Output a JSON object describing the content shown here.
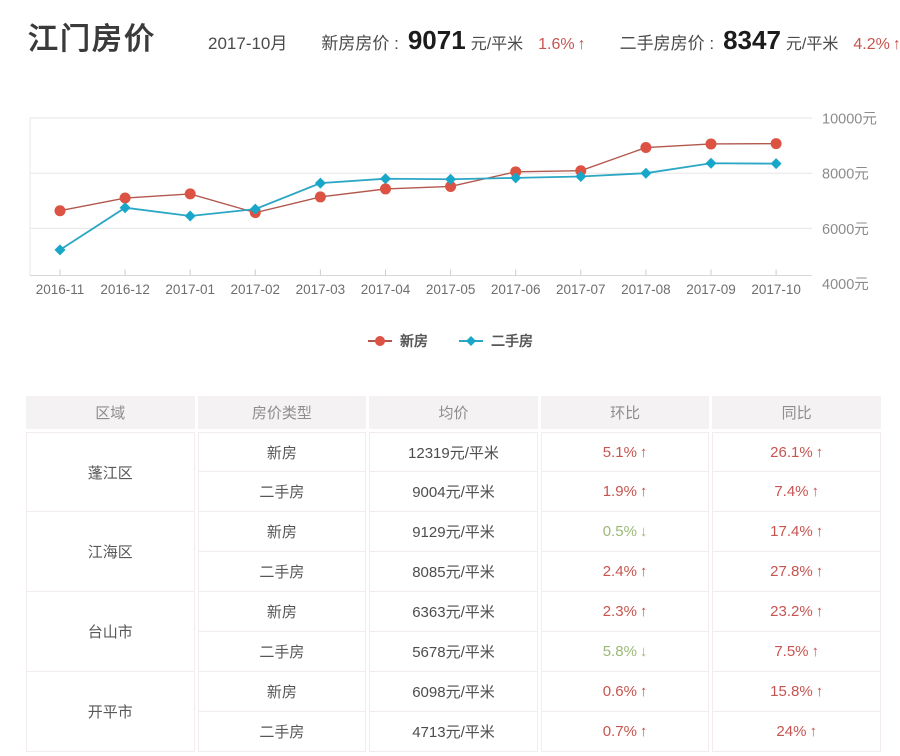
{
  "header": {
    "title": "江门房价",
    "date": "2017-10月",
    "new_label": "新房房价 :",
    "new_price": "9071",
    "new_unit": "元/平米",
    "new_change": "1.6%",
    "new_trend": "up",
    "second_label": "二手房房价 :",
    "second_price": "8347",
    "second_unit": "元/平米",
    "second_change": "4.2%",
    "second_trend": "up",
    "grid_icon": "grid-icon"
  },
  "colors": {
    "up_red": "#c75450",
    "down_green": "#9cb878",
    "new_house_series": "#dc5243",
    "second_hand_series": "#18a7c9"
  },
  "chart_data": {
    "type": "line",
    "x": [
      "2016-11",
      "2016-12",
      "2017-01",
      "2017-02",
      "2017-03",
      "2017-04",
      "2017-05",
      "2017-06",
      "2017-07",
      "2017-08",
      "2017-09",
      "2017-10"
    ],
    "series": [
      {
        "name": "新房",
        "marker": "circle",
        "color": "#dc5243",
        "line_color": "#b2584d",
        "values": [
          6640,
          7100,
          7250,
          6570,
          7140,
          7430,
          7520,
          8050,
          8090,
          8930,
          9060,
          9071
        ]
      },
      {
        "name": "二手房",
        "marker": "diamond",
        "color": "#18a7c9",
        "line_color": "#2ba6c4",
        "values": [
          5220,
          6750,
          6450,
          6700,
          7640,
          7800,
          7780,
          7830,
          7880,
          8000,
          8360,
          8347
        ]
      }
    ],
    "ylim": [
      4000,
      10000
    ],
    "y_tick_labels": [
      "10000元",
      "8000元",
      "6000元",
      "4000元"
    ],
    "y_unit": "元",
    "grid": true,
    "legend_position": "bottom"
  },
  "table": {
    "headers": [
      "区域",
      "房价类型",
      "均价",
      "环比",
      "同比"
    ],
    "regions": [
      {
        "name": "蓬江区",
        "rows": [
          {
            "type": "新房",
            "price": "12319元/平米",
            "mom": "5.1%",
            "mom_dir": "up",
            "yoy": "26.1%",
            "yoy_dir": "up"
          },
          {
            "type": "二手房",
            "price": "9004元/平米",
            "mom": "1.9%",
            "mom_dir": "up",
            "yoy": "7.4%",
            "yoy_dir": "up"
          }
        ]
      },
      {
        "name": "江海区",
        "rows": [
          {
            "type": "新房",
            "price": "9129元/平米",
            "mom": "0.5%",
            "mom_dir": "down",
            "yoy": "17.4%",
            "yoy_dir": "up"
          },
          {
            "type": "二手房",
            "price": "8085元/平米",
            "mom": "2.4%",
            "mom_dir": "up",
            "yoy": "27.8%",
            "yoy_dir": "up"
          }
        ]
      },
      {
        "name": "台山市",
        "rows": [
          {
            "type": "新房",
            "price": "6363元/平米",
            "mom": "2.3%",
            "mom_dir": "up",
            "yoy": "23.2%",
            "yoy_dir": "up"
          },
          {
            "type": "二手房",
            "price": "5678元/平米",
            "mom": "5.8%",
            "mom_dir": "down",
            "yoy": "7.5%",
            "yoy_dir": "up"
          }
        ]
      },
      {
        "name": "开平市",
        "rows": [
          {
            "type": "新房",
            "price": "6098元/平米",
            "mom": "0.6%",
            "mom_dir": "up",
            "yoy": "15.8%",
            "yoy_dir": "up"
          },
          {
            "type": "二手房",
            "price": "4713元/平米",
            "mom": "0.7%",
            "mom_dir": "up",
            "yoy": "24%",
            "yoy_dir": "up"
          }
        ]
      }
    ]
  }
}
